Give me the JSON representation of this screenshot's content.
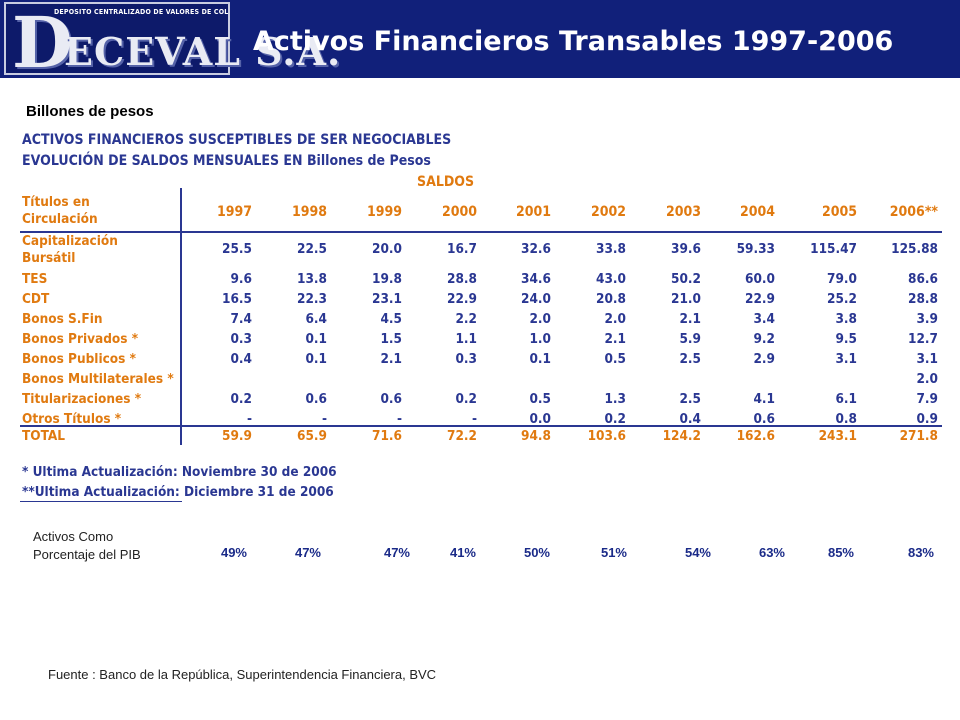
{
  "header": {
    "logo_tagline": "DEPOSITO CENTRALIZADO DE VALORES DE COLOMBIA",
    "logo_d": "D",
    "logo_rest": "ECEVAL S.A.",
    "title": "Activos Financieros Transables 1997-2006"
  },
  "unit_label": "Billones de pesos",
  "table": {
    "heading1": "ACTIVOS FINANCIEROS SUSCEPTIBLES DE SER NEGOCIABLES",
    "heading2": "EVOLUCIÓN DE SALDOS MENSUALES EN Billones de Pesos",
    "group_header": "SALDOS",
    "corner_label_1": "Títulos en",
    "corner_label_2": "Circulación",
    "years": [
      "1997",
      "1998",
      "1999",
      "2000",
      "2001",
      "2002",
      "2003",
      "2004",
      "2005",
      "2006**"
    ],
    "rows": [
      {
        "label": "Capitalización",
        "label2": "Bursátil",
        "values": [
          "25.5",
          "22.5",
          "20.0",
          "16.7",
          "32.6",
          "33.8",
          "39.6",
          "59.33",
          "115.47",
          "125.88"
        ]
      },
      {
        "label": "TES",
        "values": [
          "9.6",
          "13.8",
          "19.8",
          "28.8",
          "34.6",
          "43.0",
          "50.2",
          "60.0",
          "79.0",
          "86.6"
        ]
      },
      {
        "label": "CDT",
        "values": [
          "16.5",
          "22.3",
          "23.1",
          "22.9",
          "24.0",
          "20.8",
          "21.0",
          "22.9",
          "25.2",
          "28.8"
        ]
      },
      {
        "label": "Bonos S.Fin",
        "values": [
          "7.4",
          "6.4",
          "4.5",
          "2.2",
          "2.0",
          "2.0",
          "2.1",
          "3.4",
          "3.8",
          "3.9"
        ]
      },
      {
        "label": "Bonos Privados *",
        "values": [
          "0.3",
          "0.1",
          "1.5",
          "1.1",
          "1.0",
          "2.1",
          "5.9",
          "9.2",
          "9.5",
          "12.7"
        ]
      },
      {
        "label": "Bonos Publicos *",
        "values": [
          "0.4",
          "0.1",
          "2.1",
          "0.3",
          "0.1",
          "0.5",
          "2.5",
          "2.9",
          "3.1",
          "3.1"
        ]
      },
      {
        "label": "Bonos Multilaterales *",
        "values": [
          "",
          "",
          "",
          "",
          "",
          "",
          "",
          "",
          "",
          "2.0"
        ]
      },
      {
        "label": "Titularizaciones *",
        "values": [
          "0.2",
          "0.6",
          "0.6",
          "0.2",
          "0.5",
          "1.3",
          "2.5",
          "4.1",
          "6.1",
          "7.9"
        ]
      },
      {
        "label": "Otros Títulos *",
        "values": [
          "-",
          "-",
          "-",
          "-",
          "0.0",
          "0.2",
          "0.4",
          "0.6",
          "0.8",
          "0.9"
        ]
      }
    ],
    "total": {
      "label": "TOTAL",
      "values": [
        "59.9",
        "65.9",
        "71.6",
        "72.2",
        "94.8",
        "103.6",
        "124.2",
        "162.6",
        "243.1",
        "271.8"
      ]
    },
    "notes": [
      "* Ultima Actualización: Noviembre 30 de 2006",
      "**Ultima Actualización: Diciembre 31 de 2006"
    ]
  },
  "pib": {
    "label_line1": "Activos Como",
    "label_line2": "Porcentaje del PIB",
    "values": [
      "49%",
      "47%",
      "47%",
      "41%",
      "50%",
      "51%",
      "54%",
      "63%",
      "85%",
      "83%"
    ]
  },
  "source": "Fuente : Banco de la República, Superintendencia Financiera, BVC",
  "colors": {
    "header_bg": "#11207a",
    "table_blue": "#2a3792",
    "table_orange": "#e07a10"
  }
}
